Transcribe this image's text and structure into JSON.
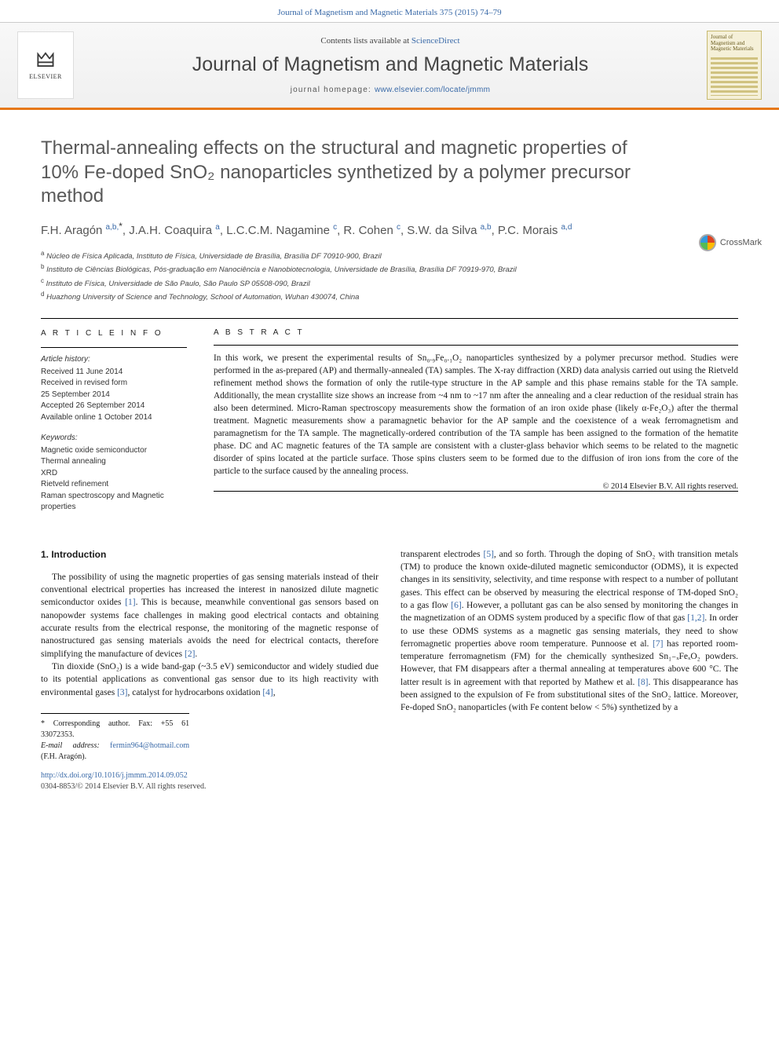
{
  "journal_ref": "Journal of Magnetism and Magnetic Materials 375 (2015) 74–79",
  "header": {
    "contents_prefix": "Contents lists available at ",
    "contents_link": "ScienceDirect",
    "journal_name": "Journal of Magnetism and Magnetic Materials",
    "homepage_prefix": "journal homepage: ",
    "homepage_url": "www.elsevier.com/locate/jmmm",
    "publisher_brand": "ELSEVIER",
    "cover_title": "Journal of Magnetism and Magnetic Materials"
  },
  "crossmark_label": "CrossMark",
  "title": "Thermal-annealing effects on the structural and magnetic properties of 10% Fe-doped SnO₂ nanoparticles synthetized by a polymer precursor method",
  "authors_html": "F.H. Aragón <sup class=\"aff\">a,b,</sup><sup class=\"corr\">*</sup>, J.A.H. Coaquira <sup class=\"aff\">a</sup>, L.C.C.M. Nagamine <sup class=\"aff\">c</sup>, R. Cohen <sup class=\"aff\">c</sup>, S.W. da Silva <sup class=\"aff\">a,b</sup>, P.C. Morais <sup class=\"aff\">a,d</sup>",
  "affiliations": [
    {
      "sup": "a",
      "text": "Núcleo de Física Aplicada, Instituto de Física, Universidade de Brasília, Brasília DF 70910-900, Brazil"
    },
    {
      "sup": "b",
      "text": "Instituto de Ciências Biológicas, Pós-graduação em Nanociência e Nanobiotecnologia, Universidade de Brasília, Brasília DF 70919-970, Brazil"
    },
    {
      "sup": "c",
      "text": "Instituto de Física, Universidade de São Paulo, São Paulo SP 05508-090, Brazil"
    },
    {
      "sup": "d",
      "text": "Huazhong University of Science and Technology, School of Automation, Wuhan 430074, China"
    }
  ],
  "article_info": {
    "heading": "A R T I C L E   I N F O",
    "history_heading": "Article history:",
    "history": [
      "Received 11 June 2014",
      "Received in revised form",
      "25 September 2014",
      "Accepted 26 September 2014",
      "Available online 1 October 2014"
    ],
    "keywords_heading": "Keywords:",
    "keywords": [
      "Magnetic oxide semiconductor",
      "Thermal annealing",
      "XRD",
      "Rietveld refinement",
      "Raman spectroscopy and Magnetic properties"
    ]
  },
  "abstract": {
    "heading": "A B S T R A C T",
    "text": "In this work, we present the experimental results of Sn₀.₉Fe₀.₁O₂ nanoparticles synthesized by a polymer precursor method. Studies were performed in the as-prepared (AP) and thermally-annealed (TA) samples. The X-ray diffraction (XRD) data analysis carried out using the Rietveld refinement method shows the formation of only the rutile-type structure in the AP sample and this phase remains stable for the TA sample. Additionally, the mean crystallite size shows an increase from ~4 nm to ~17 nm after the annealing and a clear reduction of the residual strain has also been determined. Micro-Raman spectroscopy measurements show the formation of an iron oxide phase (likely α-Fe₂O₃) after the thermal treatment. Magnetic measurements show a paramagnetic behavior for the AP sample and the coexistence of a weak ferromagnetism and paramagnetism for the TA sample. The magnetically-ordered contribution of the TA sample has been assigned to the formation of the hematite phase. DC and AC magnetic features of the TA sample are consistent with a cluster-glass behavior which seems to be related to the magnetic disorder of spins located at the particle surface. Those spins clusters seem to be formed due to the diffusion of iron ions from the core of the particle to the surface caused by the annealing process.",
    "copyright": "© 2014 Elsevier B.V. All rights reserved."
  },
  "section1": {
    "heading": "1.  Introduction",
    "para1": "The possibility of using the magnetic properties of gas sensing materials instead of their conventional electrical properties has increased the interest in nanosized dilute magnetic semiconductor oxides [1]. This is because, meanwhile conventional gas sensors based on nanopowder systems face challenges in making good electrical contacts and obtaining accurate results from the electrical response, the monitoring of the magnetic response of nanostructured gas sensing materials avoids the need for electrical contacts, therefore simplifying the manufacture of devices [2].",
    "para2": "Tin dioxide (SnO₂) is a wide band-gap (~3.5 eV) semiconductor and widely studied due to its potential applications as conventional gas sensor due to its high reactivity with environmental gases [3], catalyst for hydrocarbons oxidation [4],",
    "para2_cont": "transparent electrodes [5], and so forth. Through the doping of SnO₂ with transition metals (TM) to produce the known oxide-diluted magnetic semiconductor (ODMS), it is expected changes in its sensitivity, selectivity, and time response with respect to a number of pollutant gases. This effect can be observed by measuring the electrical response of TM-doped SnO₂ to a gas flow [6]. However, a pollutant gas can be also sensed by monitoring the changes in the magnetization of an ODMS system produced by a specific flow of that gas [1,2]. In order to use these ODMS systems as a magnetic gas sensing materials, they need to show ferromagnetic properties above room temperature. Punnoose et al. [7] has reported room-temperature ferromagnetism (FM) for the chemically synthesized Sn₁₋ₓFeₓO₂ powders. However, that FM disappears after a thermal annealing at temperatures above 600 °C. The latter result is in agreement with that reported by Mathew et al. [8]. This disappearance has been assigned to the expulsion of Fe from substitutional sites of the SnO₂ lattice. Moreover, Fe-doped SnO₂ nanoparticles (with Fe content below < 5%) synthetized by a"
  },
  "footnote": {
    "corr": "* Corresponding author. Fax: +55 61 33072353.",
    "email_label": "E-mail address: ",
    "email": "fermin964@hotmail.com",
    "email_suffix": " (F.H. Aragón)."
  },
  "doi": {
    "url": "http://dx.doi.org/10.1016/j.jmmm.2014.09.052",
    "issn_line": "0304-8853/© 2014 Elsevier B.V. All rights reserved."
  },
  "colors": {
    "link": "#3a6aa8",
    "accent": "#e67817",
    "text": "#1a1a1a",
    "heading_gray": "#585858"
  }
}
